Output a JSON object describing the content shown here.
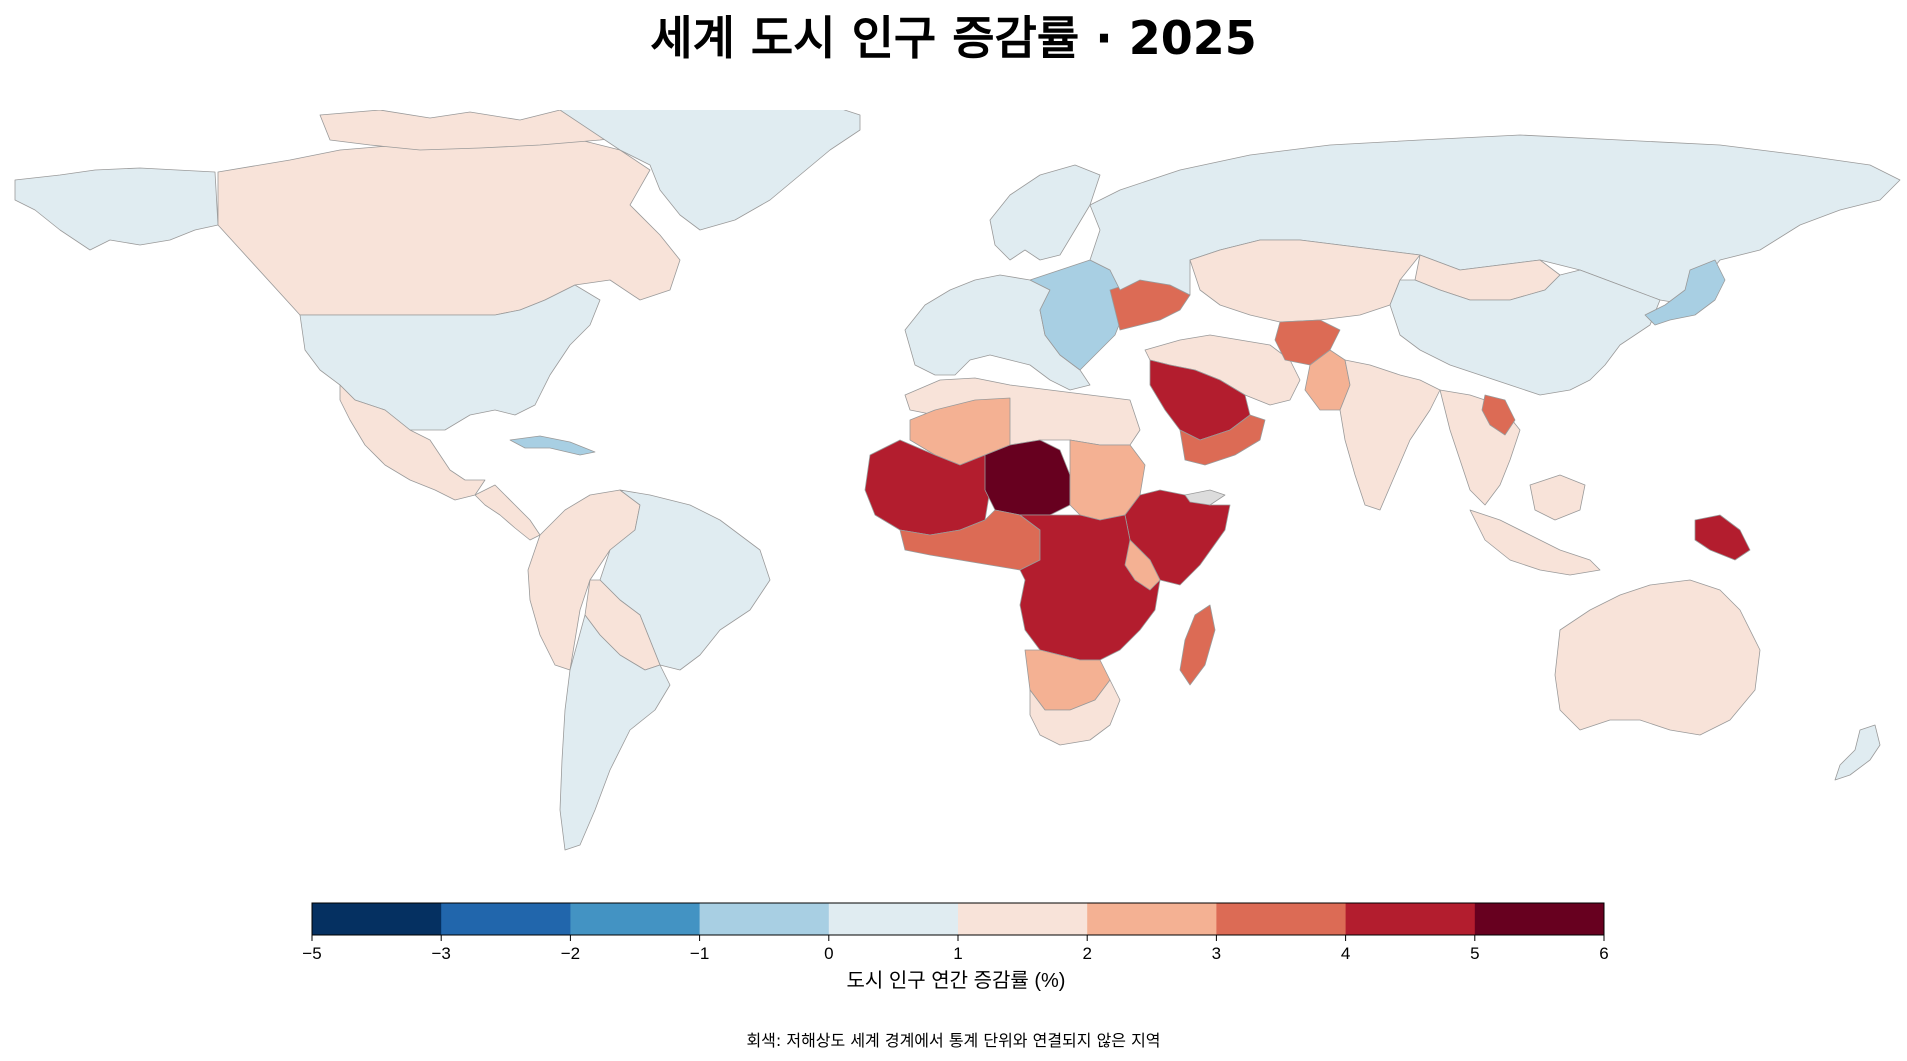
{
  "title": "세계 도시 인구 증감률 · 2025",
  "colorbar": {
    "label": "도시 인구 연간 증감률 (%)",
    "ticks": [
      "−5",
      "−3",
      "−2",
      "−1",
      "0",
      "1",
      "2",
      "3",
      "4",
      "5",
      "6"
    ],
    "bins": [
      {
        "from": -5,
        "to": -3,
        "color": "#053061"
      },
      {
        "from": -3,
        "to": -2,
        "color": "#2166ac"
      },
      {
        "from": -2,
        "to": -1,
        "color": "#4393c3"
      },
      {
        "from": -1,
        "to": 0,
        "color": "#a8cfe3"
      },
      {
        "from": 0,
        "to": 1,
        "color": "#e0ecf1"
      },
      {
        "from": 1,
        "to": 2,
        "color": "#f8e3d9"
      },
      {
        "from": 2,
        "to": 3,
        "color": "#f4b193"
      },
      {
        "from": 3,
        "to": 4,
        "color": "#dc6b55"
      },
      {
        "from": 4,
        "to": 5,
        "color": "#b31d2e"
      },
      {
        "from": 5,
        "to": 6,
        "color": "#67001f"
      }
    ]
  },
  "caption": "회색: 저해상도 세계 경계에서 통계 단위와 연결되지 않은 지역",
  "colors": {
    "no_data": "#dcdcdc",
    "border": "#9a9a9a"
  },
  "regions": [
    {
      "name": "canada",
      "color": "#f8e3d9"
    },
    {
      "name": "united-states",
      "color": "#e0ecf1"
    },
    {
      "name": "alaska",
      "color": "#e0ecf1"
    },
    {
      "name": "greenland",
      "color": "#e0ecf1"
    },
    {
      "name": "mexico",
      "color": "#f8e3d9"
    },
    {
      "name": "central-america",
      "color": "#f8e3d9"
    },
    {
      "name": "cuba",
      "color": "#a8cfe3"
    },
    {
      "name": "south-america-west",
      "color": "#f8e3d9"
    },
    {
      "name": "brazil",
      "color": "#e0ecf1"
    },
    {
      "name": "southern-cone",
      "color": "#e0ecf1"
    },
    {
      "name": "bolivia-paraguay",
      "color": "#f8e3d9"
    },
    {
      "name": "western-europe",
      "color": "#e0ecf1"
    },
    {
      "name": "scandinavia",
      "color": "#e0ecf1"
    },
    {
      "name": "eastern-europe",
      "color": "#a8cfe3"
    },
    {
      "name": "ukraine",
      "color": "#dc6b55"
    },
    {
      "name": "russia",
      "color": "#e0ecf1"
    },
    {
      "name": "kazakhstan-central-asia",
      "color": "#f8e3d9"
    },
    {
      "name": "mongolia",
      "color": "#f8e3d9"
    },
    {
      "name": "china",
      "color": "#e0ecf1"
    },
    {
      "name": "japan",
      "color": "#a8cfe3"
    },
    {
      "name": "middle-east",
      "color": "#f8e3d9"
    },
    {
      "name": "saudi-arabia",
      "color": "#b31d2e"
    },
    {
      "name": "yemen-oman",
      "color": "#dc6b55"
    },
    {
      "name": "afghanistan",
      "color": "#dc6b55"
    },
    {
      "name": "pakistan",
      "color": "#f4b193"
    },
    {
      "name": "india",
      "color": "#f8e3d9"
    },
    {
      "name": "southeast-asia",
      "color": "#f8e3d9"
    },
    {
      "name": "laos",
      "color": "#dc6b55"
    },
    {
      "name": "indonesia",
      "color": "#f8e3d9"
    },
    {
      "name": "papua-new-guinea",
      "color": "#b31d2e"
    },
    {
      "name": "australia",
      "color": "#f8e3d9"
    },
    {
      "name": "new-zealand",
      "color": "#e0ecf1"
    },
    {
      "name": "north-africa",
      "color": "#f8e3d9"
    },
    {
      "name": "algeria",
      "color": "#f4b193"
    },
    {
      "name": "west-africa",
      "color": "#b31d2e"
    },
    {
      "name": "niger-chad",
      "color": "#67001f"
    },
    {
      "name": "nigeria-region",
      "color": "#dc6b55"
    },
    {
      "name": "sudan",
      "color": "#f4b193"
    },
    {
      "name": "ethiopia-somalia",
      "color": "#b31d2e"
    },
    {
      "name": "central-africa",
      "color": "#b31d2e"
    },
    {
      "name": "east-africa",
      "color": "#f4b193"
    },
    {
      "name": "southern-africa",
      "color": "#f4b193"
    },
    {
      "name": "south-africa",
      "color": "#f8e3d9"
    },
    {
      "name": "madagascar",
      "color": "#dc6b55"
    },
    {
      "name": "somaliland",
      "color": "#dcdcdc"
    }
  ]
}
